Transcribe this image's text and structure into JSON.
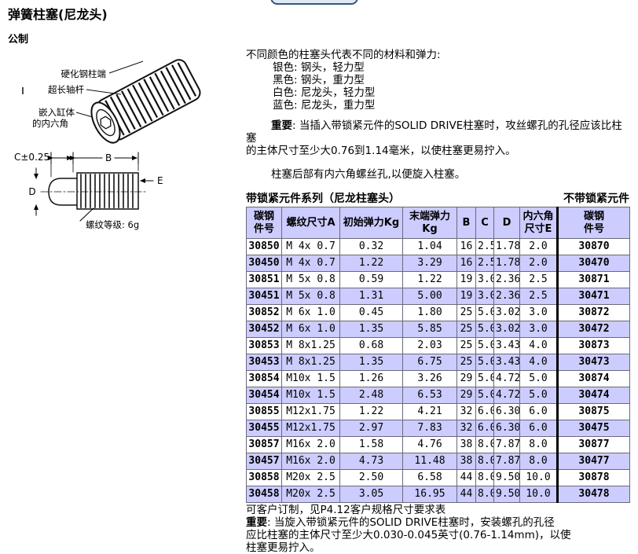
{
  "page": {
    "title": "弹簧柱塞(尼龙头)",
    "subtitle": "公制"
  },
  "diagram": {
    "labels": {
      "hardened_end": "硬化钢柱端",
      "long_shaft": "超长轴杆",
      "hex_line1": "嵌入缸体",
      "hex_line2": "的内六角",
      "dim_c": "C±0.25",
      "dim_b": "B",
      "dim_d": "D",
      "dim_e": "E",
      "thread_class": "螺纹等级: 6g"
    }
  },
  "intro": {
    "heading": "不同颜色的柱塞头代表不同的材料和弹力:",
    "color_lines": [
      "银色: 钢头，轻力型",
      "黑色: 钢头，重力型",
      "白色: 尼龙头，轻力型",
      "蓝色: 尼龙头，重力型"
    ],
    "important_label": "重要",
    "important_text": ": 当插入带锁紧元件的SOLID DRIVE柱塞时，攻丝螺孔的孔径应该比柱塞\n的主体尺寸至少大0.76到1.14毫米，以使柱塞更易拧入。",
    "rear_note": "柱塞后部有内六角螺丝孔,以便旋入柱塞。"
  },
  "table": {
    "caption_left": "带锁紧元件系列（尼龙柱塞头）",
    "caption_right": "不带锁紧元件",
    "headers": [
      "碳钢\n件号",
      "螺纹尺寸A",
      "初始弹力Kg",
      "末端弹力\nKg",
      "B",
      "C",
      "D",
      "内六角\n尺寸E",
      "碳钢\n件号"
    ],
    "rows": [
      {
        "pn": "30850",
        "thread": "M 4x 0.7",
        "initial": "0.32",
        "final": "1.04",
        "b": "16",
        "c": "2.5",
        "d": "1.78",
        "hex": "2.0",
        "pn2": "30870",
        "shaded": false
      },
      {
        "pn": "30450",
        "thread": "M 4x 0.7",
        "initial": "1.22",
        "final": "3.29",
        "b": "16",
        "c": "2.5",
        "d": "1.78",
        "hex": "2.0",
        "pn2": "30470",
        "shaded": true
      },
      {
        "pn": "30851",
        "thread": "M 5x 0.8",
        "initial": "0.59",
        "final": "1.22",
        "b": "19",
        "c": "3.0",
        "d": "2.36",
        "hex": "2.5",
        "pn2": "30871",
        "shaded": false
      },
      {
        "pn": "30451",
        "thread": "M 5x 0.8",
        "initial": "1.31",
        "final": "5.00",
        "b": "19",
        "c": "3.0",
        "d": "2.36",
        "hex": "2.5",
        "pn2": "30471",
        "shaded": true
      },
      {
        "pn": "30852",
        "thread": "M 6x 1.0",
        "initial": "0.45",
        "final": "1.80",
        "b": "25",
        "c": "5.0",
        "d": "3.02",
        "hex": "3.0",
        "pn2": "30872",
        "shaded": false
      },
      {
        "pn": "30452",
        "thread": "M 6x 1.0",
        "initial": "1.35",
        "final": "5.85",
        "b": "25",
        "c": "5.0",
        "d": "3.02",
        "hex": "3.0",
        "pn2": "30472",
        "shaded": true
      },
      {
        "pn": "30853",
        "thread": "M 8x1.25",
        "initial": "0.68",
        "final": "2.03",
        "b": "25",
        "c": "5.0",
        "d": "3.43",
        "hex": "4.0",
        "pn2": "30873",
        "shaded": false
      },
      {
        "pn": "30453",
        "thread": "M 8x1.25",
        "initial": "1.35",
        "final": "6.75",
        "b": "25",
        "c": "5.0",
        "d": "3.43",
        "hex": "4.0",
        "pn2": "30473",
        "shaded": true
      },
      {
        "pn": "30854",
        "thread": "M10x 1.5",
        "initial": "1.26",
        "final": "3.26",
        "b": "29",
        "c": "5.0",
        "d": "4.72",
        "hex": "5.0",
        "pn2": "30874",
        "shaded": false
      },
      {
        "pn": "30454",
        "thread": "M10x 1.5",
        "initial": "2.48",
        "final": "6.53",
        "b": "29",
        "c": "5.0",
        "d": "4.72",
        "hex": "5.0",
        "pn2": "30474",
        "shaded": true
      },
      {
        "pn": "30855",
        "thread": "M12x1.75",
        "initial": "1.22",
        "final": "4.21",
        "b": "32",
        "c": "6.0",
        "d": "6.30",
        "hex": "6.0",
        "pn2": "30875",
        "shaded": false
      },
      {
        "pn": "30455",
        "thread": "M12x1.75",
        "initial": "2.97",
        "final": "7.83",
        "b": "32",
        "c": "6.0",
        "d": "6.30",
        "hex": "6.0",
        "pn2": "30475",
        "shaded": true
      },
      {
        "pn": "30857",
        "thread": "M16x 2.0",
        "initial": "1.58",
        "final": "4.76",
        "b": "38",
        "c": "8.0",
        "d": "7.87",
        "hex": "8.0",
        "pn2": "30877",
        "shaded": false
      },
      {
        "pn": "30457",
        "thread": "M16x 2.0",
        "initial": "4.73",
        "final": "11.48",
        "b": "38",
        "c": "8.0",
        "d": "7.87",
        "hex": "8.0",
        "pn2": "30477",
        "shaded": true
      },
      {
        "pn": "30858",
        "thread": "M20x 2.5",
        "initial": "2.50",
        "final": "6.58",
        "b": "44",
        "c": "8.0",
        "d": "9.50",
        "hex": "10.0",
        "pn2": "30878",
        "shaded": false
      },
      {
        "pn": "30458",
        "thread": "M20x 2.5",
        "initial": "3.05",
        "final": "16.95",
        "b": "44",
        "c": "8.0",
        "d": "9.50",
        "hex": "10.0",
        "pn2": "30478",
        "shaded": true
      }
    ]
  },
  "footer": {
    "custom_note": "可客户订制，见P4.12客户规格尺寸要求表",
    "important_label": "重要",
    "important_text": ": 当旋入带锁紧元件的SOLID DRIVE柱塞时，安装螺孔的孔径\n应比柱塞的主体尺寸至少大0.030-0.045英寸(0.76-1.14mm)，以使\n柱塞更易拧入。"
  },
  "colors": {
    "row_shade": "#ccccff",
    "header_bg": "#ccccff",
    "button_border": "#35597c",
    "button_fill": "#dfe9f3"
  }
}
